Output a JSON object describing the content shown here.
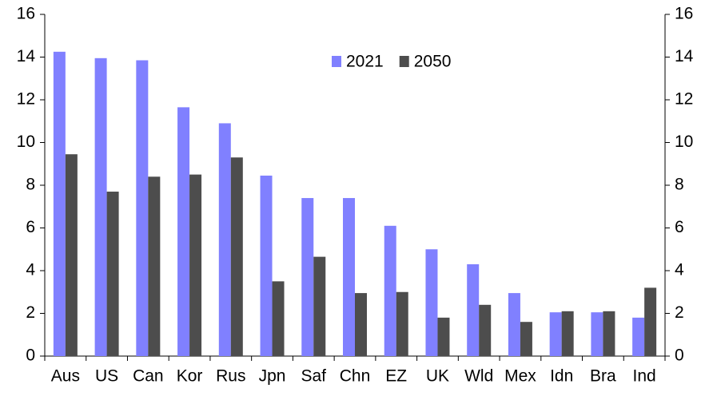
{
  "chart_data": {
    "type": "bar",
    "categories": [
      "Aus",
      "US",
      "Can",
      "Kor",
      "Rus",
      "Jpn",
      "Saf",
      "Chn",
      "EZ",
      "UK",
      "Wld",
      "Mex",
      "Idn",
      "Bra",
      "Ind"
    ],
    "series": [
      {
        "name": "2021",
        "color": "#8080ff",
        "values": [
          14.25,
          13.95,
          13.85,
          11.65,
          10.9,
          8.45,
          7.4,
          7.4,
          6.1,
          5.0,
          4.3,
          2.95,
          2.05,
          2.05,
          1.8
        ]
      },
      {
        "name": "2050",
        "color": "#4d4d4d",
        "values": [
          9.45,
          7.7,
          8.4,
          8.5,
          9.3,
          3.5,
          4.65,
          2.95,
          3.0,
          1.8,
          2.4,
          1.6,
          2.1,
          2.1,
          3.2
        ]
      }
    ],
    "ylim": [
      0,
      16
    ],
    "yticks": [
      0,
      2,
      4,
      6,
      8,
      10,
      12,
      14,
      16
    ],
    "y2lim": [
      0,
      16
    ],
    "y2ticks": [
      0,
      2,
      4,
      6,
      8,
      10,
      12,
      14,
      16
    ],
    "grid": false,
    "legend": "top"
  }
}
